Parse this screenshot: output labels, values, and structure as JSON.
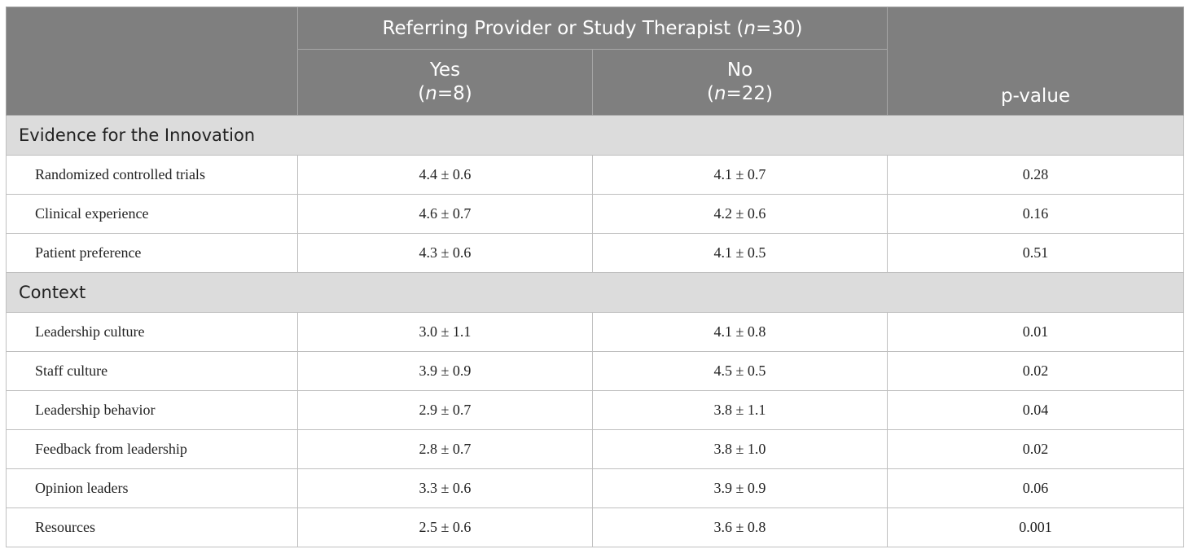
{
  "header": {
    "group": {
      "prefix": "Referring Provider or Study Therapist (",
      "n_italic": "n",
      "suffix": "=30)"
    },
    "yes": {
      "label": "Yes",
      "open": "(",
      "n_italic": "n",
      "suffix": "=8)"
    },
    "no": {
      "label": "No",
      "open": "(",
      "n_italic": "n",
      "suffix": "=22)"
    },
    "pvalue": "p-value"
  },
  "sections": [
    {
      "title": "Evidence for the Innovation",
      "rows": [
        {
          "label": "Randomized controlled trials",
          "yes": "4.4 ± 0.6",
          "no": "4.1 ± 0.7",
          "p": "0.28"
        },
        {
          "label": "Clinical experience",
          "yes": "4.6 ± 0.7",
          "no": "4.2 ± 0.6",
          "p": "0.16"
        },
        {
          "label": "Patient preference",
          "yes": "4.3 ± 0.6",
          "no": "4.1 ± 0.5",
          "p": "0.51"
        }
      ]
    },
    {
      "title": "Context",
      "rows": [
        {
          "label": "Leadership culture",
          "yes": "3.0 ± 1.1",
          "no": "4.1 ± 0.8",
          "p": "0.01"
        },
        {
          "label": "Staff culture",
          "yes": "3.9 ± 0.9",
          "no": "4.5 ± 0.5",
          "p": "0.02"
        },
        {
          "label": "Leadership behavior",
          "yes": "2.9 ± 0.7",
          "no": "3.8 ± 1.1",
          "p": "0.04"
        },
        {
          "label": "Feedback from leadership",
          "yes": "2.8 ± 0.7",
          "no": "3.8 ± 1.0",
          "p": "0.02"
        },
        {
          "label": "Opinion leaders",
          "yes": "3.3 ± 0.6",
          "no": "3.9 ± 0.9",
          "p": "0.06"
        },
        {
          "label": "Resources",
          "yes": "2.5 ± 0.6",
          "no": "3.6 ± 0.8",
          "p": "0.001"
        }
      ]
    }
  ]
}
